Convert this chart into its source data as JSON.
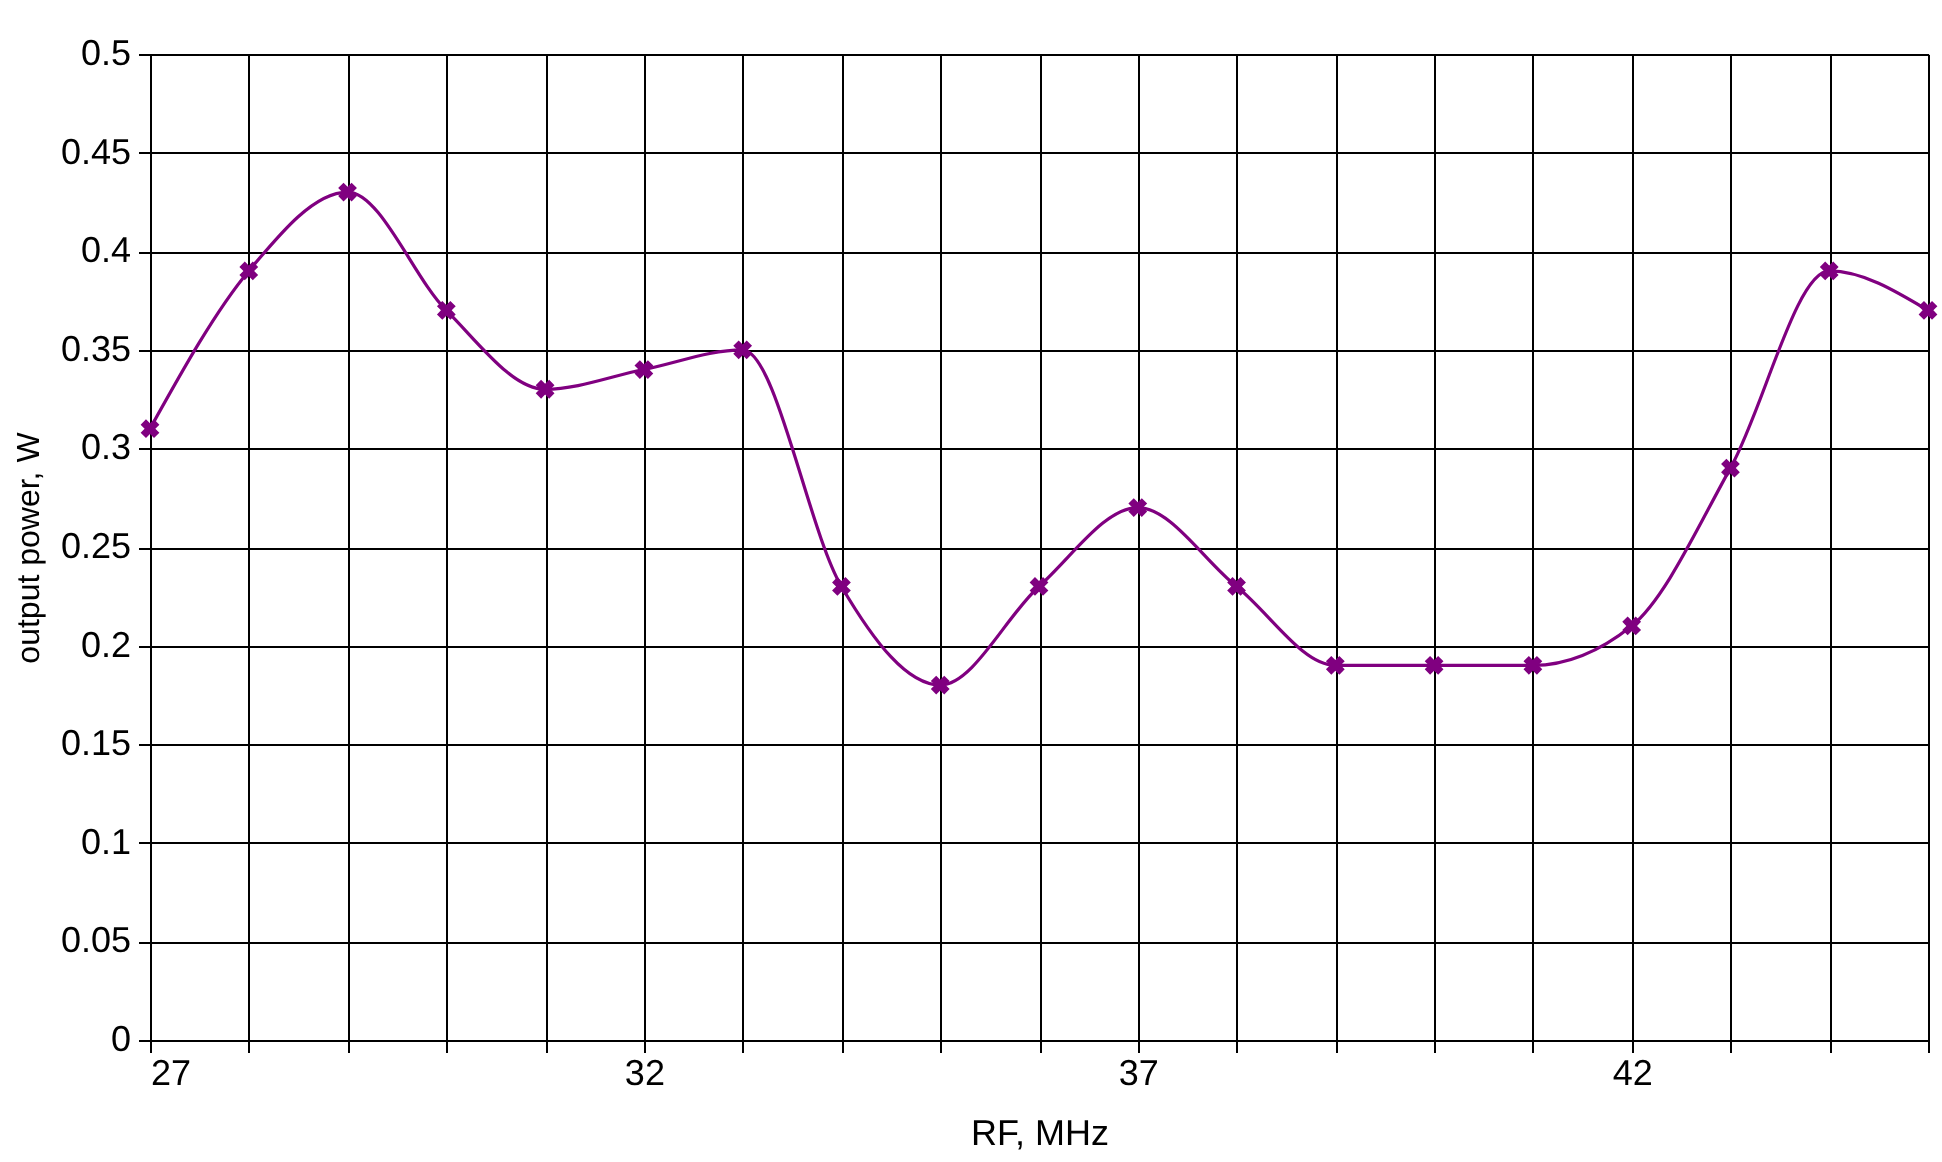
{
  "chart_data": {
    "type": "line",
    "xlabel": "RF, MHz",
    "ylabel": "output power, W",
    "x": [
      27,
      28,
      29,
      30,
      31,
      32,
      33,
      34,
      35,
      36,
      37,
      38,
      39,
      40,
      41,
      42,
      43,
      44,
      45
    ],
    "series": [
      {
        "color": "#800080",
        "values": [
          0.31,
          0.39,
          0.43,
          0.37,
          0.33,
          0.34,
          0.35,
          0.23,
          0.18,
          0.23,
          0.27,
          0.23,
          0.19,
          0.19,
          0.19,
          0.21,
          0.29,
          0.39,
          0.37
        ]
      }
    ],
    "xlim": [
      27,
      45
    ],
    "xticks": [
      27,
      {
        "value": 28,
        "label": null
      },
      {
        "value": 29,
        "label": null
      },
      {
        "value": 30,
        "label": null
      },
      {
        "value": 31,
        "label": null
      },
      32,
      {
        "value": 33,
        "label": null
      },
      {
        "value": 34,
        "label": null
      },
      {
        "value": 35,
        "label": null
      },
      {
        "value": 36,
        "label": null
      },
      37,
      {
        "value": 38,
        "label": null
      },
      {
        "value": 39,
        "label": null
      },
      {
        "value": 40,
        "label": null
      },
      {
        "value": 41,
        "label": null
      },
      42,
      {
        "value": 43,
        "label": null
      },
      {
        "value": 44,
        "label": null
      },
      {
        "value": 45,
        "label": null
      }
    ],
    "ylim": [
      0,
      0.5
    ],
    "yticks": [
      0,
      0.05,
      0.1,
      0.15,
      0.2,
      0.25,
      0.3,
      0.35,
      0.4,
      0.45,
      0.5
    ],
    "grid": true,
    "marker": "cross",
    "line_style": "solid"
  }
}
